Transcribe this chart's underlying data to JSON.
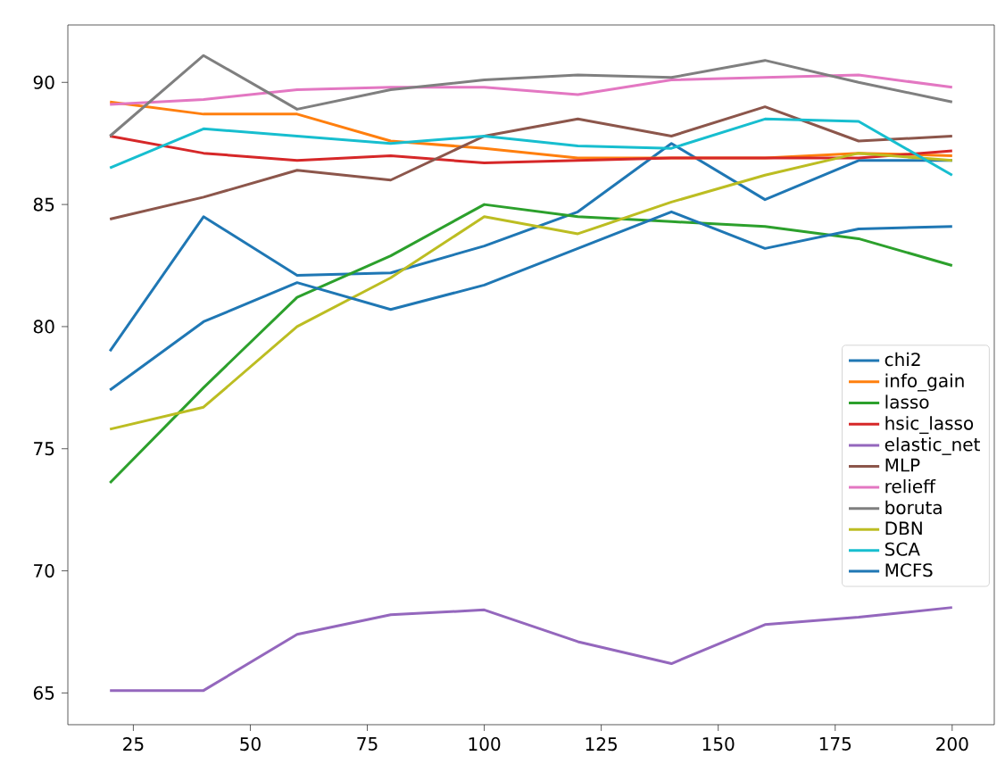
{
  "chart_data": {
    "type": "line",
    "x": [
      20,
      40,
      60,
      80,
      100,
      120,
      140,
      160,
      180,
      200
    ],
    "xlim": [
      11,
      209
    ],
    "xticks": [
      25,
      50,
      75,
      100,
      125,
      150,
      175,
      200
    ],
    "ylim": [
      63.7,
      92.35
    ],
    "yticks": [
      65,
      70,
      75,
      80,
      85,
      90
    ],
    "legend": "right",
    "grid": false,
    "series": [
      {
        "name": "chi2",
        "color": "#1f77b4",
        "values": [
          79.0,
          84.5,
          82.1,
          82.2,
          83.3,
          84.7,
          87.5,
          85.2,
          86.8,
          86.8
        ]
      },
      {
        "name": "info_gain",
        "color": "#ff7f0e",
        "values": [
          89.2,
          88.7,
          88.7,
          87.6,
          87.3,
          86.9,
          86.9,
          86.9,
          87.1,
          87.0
        ]
      },
      {
        "name": "lasso",
        "color": "#2ca02c",
        "values": [
          73.6,
          77.5,
          81.2,
          82.9,
          85.0,
          84.5,
          84.3,
          84.1,
          83.6,
          82.5
        ]
      },
      {
        "name": "hsic_lasso",
        "color": "#d62728",
        "values": [
          87.8,
          87.1,
          86.8,
          87.0,
          86.7,
          86.8,
          86.9,
          86.9,
          86.9,
          87.2
        ]
      },
      {
        "name": "elastic_net",
        "color": "#9467bd",
        "values": [
          65.1,
          65.1,
          67.4,
          68.2,
          68.4,
          67.1,
          66.2,
          67.8,
          68.1,
          68.5
        ]
      },
      {
        "name": "MLP",
        "color": "#8c564b",
        "values": [
          84.4,
          85.3,
          86.4,
          86.0,
          87.8,
          88.5,
          87.8,
          89.0,
          87.6,
          87.8
        ]
      },
      {
        "name": "relieff",
        "color": "#e377c2",
        "values": [
          89.1,
          89.3,
          89.7,
          89.8,
          89.8,
          89.5,
          90.1,
          90.2,
          90.3,
          89.8
        ]
      },
      {
        "name": "boruta",
        "color": "#7f7f7f",
        "values": [
          87.8,
          91.1,
          88.9,
          89.7,
          90.1,
          90.3,
          90.2,
          90.9,
          90.0,
          89.2
        ]
      },
      {
        "name": "DBN",
        "color": "#bcbd22",
        "values": [
          75.8,
          76.7,
          80.0,
          82.0,
          84.5,
          83.8,
          85.1,
          86.2,
          87.1,
          86.8
        ]
      },
      {
        "name": "SCA",
        "color": "#17becf",
        "values": [
          86.5,
          88.1,
          87.8,
          87.5,
          87.8,
          87.4,
          87.3,
          88.5,
          88.4,
          86.2
        ]
      },
      {
        "name": "MCFS",
        "color": "#1f77b4",
        "values": [
          77.4,
          80.2,
          81.8,
          80.7,
          81.7,
          83.2,
          84.7,
          83.2,
          84.0,
          84.1
        ]
      }
    ]
  }
}
